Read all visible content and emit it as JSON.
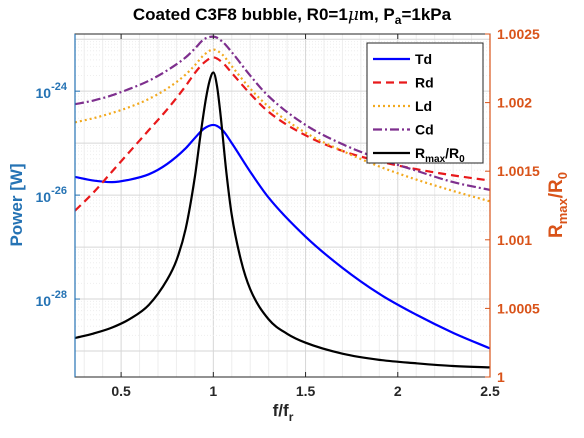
{
  "chart_data": {
    "type": "line",
    "title_parts": [
      "Coated C3F8 bubble, R0=1",
      "μ",
      "m, P",
      "a",
      "=1kPa"
    ],
    "xlabel": {
      "main": "f/f",
      "sub": "r"
    },
    "ylabel_left": "Power [W]",
    "ylabel_right": {
      "p1": "R",
      "p1sub": "max",
      "p2": "/R",
      "p2sub": "0"
    },
    "xlim": [
      0.25,
      2.5
    ],
    "xticks": [
      "0.5",
      "1",
      "1.5",
      "2",
      "2.5"
    ],
    "y_left": {
      "scale": "log",
      "lim_exp": [
        -29.5,
        -22.9
      ],
      "ticks": [
        {
          "base": "10",
          "exp": "-28"
        },
        {
          "base": "10",
          "exp": "-26"
        },
        {
          "base": "10",
          "exp": "-24"
        }
      ]
    },
    "y_right": {
      "lim": [
        1.0,
        1.0025
      ],
      "ticks": [
        "1",
        "1.0005",
        "1.001",
        "1.0015",
        "1.002",
        "1.0025"
      ]
    },
    "grid": true,
    "legend_position": "top-right",
    "colors": {
      "left_axis": "#2573b4",
      "right_axis": "#d95319"
    },
    "series": [
      {
        "key": "Td",
        "label": "Td",
        "axis": "left",
        "color": "#0000ff",
        "dash": "",
        "x": [
          0.25,
          0.35,
          0.45,
          0.55,
          0.65,
          0.75,
          0.85,
          0.9,
          0.95,
          1.0,
          1.05,
          1.1,
          1.2,
          1.3,
          1.5,
          1.7,
          1.9,
          2.1,
          2.3,
          2.5
        ],
        "y": [
          -25.65,
          -25.72,
          -25.75,
          -25.7,
          -25.6,
          -25.4,
          -25.1,
          -24.9,
          -24.72,
          -24.65,
          -24.75,
          -25.0,
          -25.55,
          -26.05,
          -26.8,
          -27.4,
          -27.9,
          -28.3,
          -28.65,
          -28.95
        ]
      },
      {
        "key": "Rd",
        "label": "Rd",
        "axis": "left",
        "color": "#e8191b",
        "dash": "8,5",
        "x": [
          0.25,
          0.35,
          0.45,
          0.55,
          0.65,
          0.75,
          0.85,
          0.9,
          0.95,
          1.0,
          1.05,
          1.1,
          1.2,
          1.3,
          1.5,
          1.7,
          1.9,
          2.1,
          2.3,
          2.5
        ],
        "y": [
          -26.3,
          -25.95,
          -25.55,
          -25.15,
          -24.75,
          -24.35,
          -23.9,
          -23.65,
          -23.45,
          -23.35,
          -23.45,
          -23.65,
          -24.05,
          -24.4,
          -24.85,
          -25.15,
          -25.35,
          -25.5,
          -25.62,
          -25.72
        ]
      },
      {
        "key": "Ld",
        "label": "Ld",
        "axis": "left",
        "color": "#f2a91e",
        "dash": "2,3",
        "x": [
          0.25,
          0.35,
          0.45,
          0.55,
          0.65,
          0.75,
          0.85,
          0.9,
          0.95,
          1.0,
          1.05,
          1.1,
          1.2,
          1.3,
          1.5,
          1.7,
          1.9,
          2.1,
          2.3,
          2.5
        ],
        "y": [
          -24.6,
          -24.52,
          -24.42,
          -24.3,
          -24.15,
          -23.95,
          -23.68,
          -23.5,
          -23.3,
          -23.2,
          -23.3,
          -23.52,
          -23.95,
          -24.3,
          -24.8,
          -25.15,
          -25.45,
          -25.7,
          -25.92,
          -26.12
        ]
      },
      {
        "key": "Cd",
        "label": "Cd",
        "axis": "left",
        "color": "#7e2f8e",
        "dash": "9,3,2,3",
        "x": [
          0.25,
          0.35,
          0.45,
          0.55,
          0.65,
          0.75,
          0.85,
          0.9,
          0.95,
          1.0,
          1.05,
          1.1,
          1.2,
          1.3,
          1.5,
          1.7,
          1.9,
          2.1,
          2.3,
          2.5
        ],
        "y": [
          -24.25,
          -24.18,
          -24.08,
          -23.95,
          -23.8,
          -23.6,
          -23.35,
          -23.18,
          -23.0,
          -22.95,
          -23.05,
          -23.25,
          -23.7,
          -24.1,
          -24.65,
          -25.02,
          -25.3,
          -25.53,
          -25.75,
          -25.9
        ]
      },
      {
        "key": "Rmax",
        "label_parts": [
          "R",
          "max",
          "/R",
          "0"
        ],
        "axis": "right",
        "color": "#000000",
        "dash": "",
        "x": [
          0.25,
          0.35,
          0.45,
          0.55,
          0.65,
          0.75,
          0.8,
          0.85,
          0.9,
          0.93,
          0.96,
          0.98,
          1.0,
          1.02,
          1.04,
          1.07,
          1.1,
          1.15,
          1.2,
          1.3,
          1.4,
          1.5,
          1.7,
          1.9,
          2.1,
          2.3,
          2.5
        ],
        "y": [
          1.000284,
          1.000317,
          1.00036,
          1.000425,
          1.000525,
          1.00071,
          1.00085,
          1.00108,
          1.00146,
          1.00176,
          1.00203,
          1.00216,
          1.00222,
          1.00212,
          1.0019,
          1.0015,
          1.00118,
          1.00085,
          1.00064,
          1.00042,
          1.000315,
          1.00025,
          1.00017,
          1.000125,
          1.0001,
          1.00008,
          1.00007
        ]
      }
    ]
  }
}
